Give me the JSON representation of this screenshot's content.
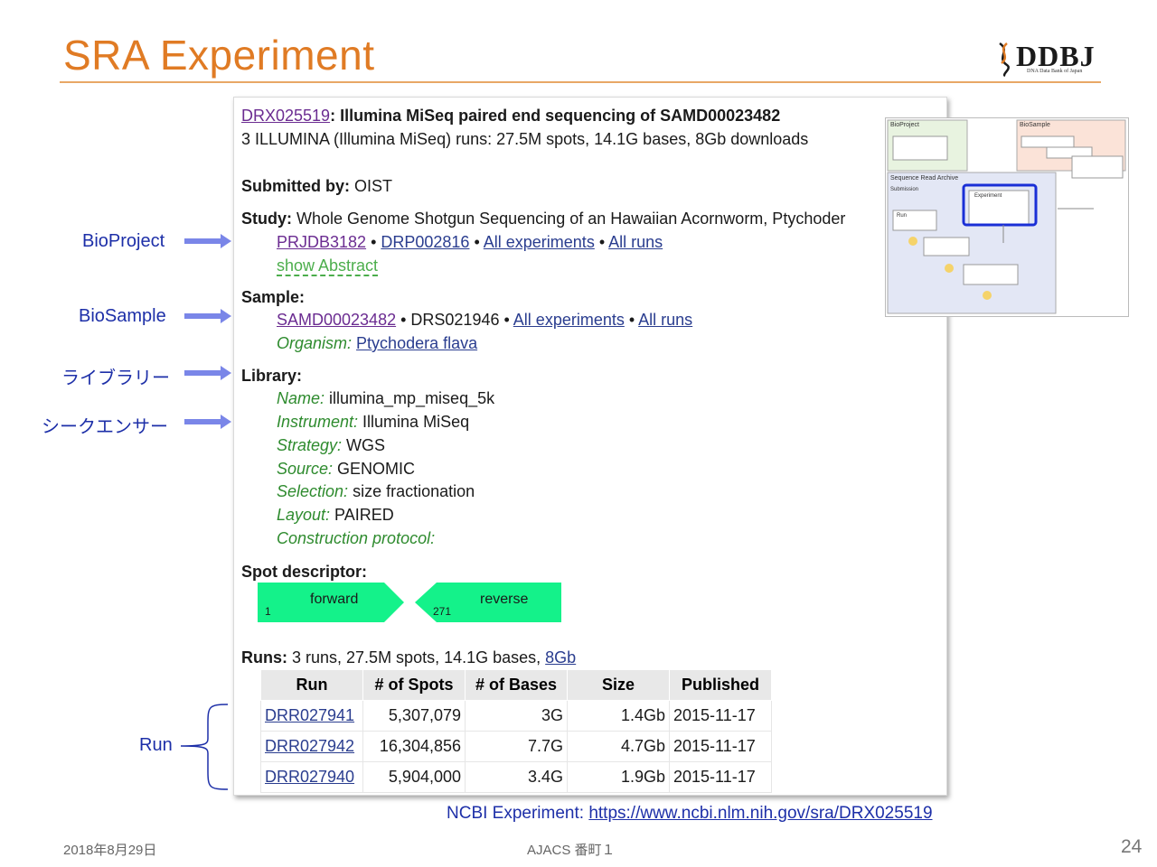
{
  "slide": {
    "title": "SRA Experiment",
    "logo_text": "DDBJ",
    "logo_sub": "DNA Data Bank of Japan",
    "footer_date": "2018年8月29日",
    "footer_center": "AJACS 番町１",
    "page_number": "24"
  },
  "colors": {
    "title": "#e07b24",
    "link": "#2a3d8f",
    "label_green": "#2e8b2e",
    "spot_fill": "#14f28a",
    "annotation_blue": "#1d2fa8"
  },
  "experiment": {
    "accession": "DRX025519",
    "title_rest": ": Illumina MiSeq paired end sequencing of SAMD00023482",
    "summary": "3 ILLUMINA (Illumina MiSeq) runs: 27.5M spots, 14.1G bases, 8Gb downloads",
    "submitted_label": "Submitted by:",
    "submitted_value": " OIST",
    "study_label": "Study:",
    "study_value": " Whole Genome Shotgun Sequencing of an Hawaiian Acornworm, Ptychoder",
    "study_links": {
      "bioproject": "PRJDB3182",
      "sep1": " • ",
      "drp": "DRP002816",
      "sep2": " • ",
      "all_experiments": "All experiments",
      "sep3": " • ",
      "all_runs": "All runs"
    },
    "show_abstract": "show Abstract",
    "sample_label": "Sample:",
    "sample_links": {
      "samd": "SAMD00023482",
      "sep1": " • ",
      "drs": "DRS021946",
      "sep2": " • ",
      "all_experiments": "All experiments",
      "sep3": " • ",
      "all_runs": "All runs"
    },
    "organism_label": "Organism:",
    "organism_value": "Ptychodera flava",
    "library_label": "Library:",
    "library_fields": [
      {
        "label": "Name:",
        "value": " illumina_mp_miseq_5k"
      },
      {
        "label": "Instrument:",
        "value": " Illumina MiSeq"
      },
      {
        "label": "Strategy:",
        "value": " WGS"
      },
      {
        "label": "Source:",
        "value": " GENOMIC"
      },
      {
        "label": "Selection:",
        "value": " size fractionation"
      },
      {
        "label": "Layout:",
        "value": " PAIRED"
      },
      {
        "label": "Construction protocol:",
        "value": ""
      }
    ],
    "spot_label": "Spot descriptor:",
    "spot_forward": "forward",
    "spot_forward_pos": "1",
    "spot_reverse": "reverse",
    "spot_reverse_pos": "271",
    "runs_label": "Runs:",
    "runs_summary": " 3 runs, 27.5M spots, 14.1G bases, ",
    "runs_download": "8Gb",
    "table_headers": [
      "Run",
      "# of Spots",
      "# of Bases",
      "Size",
      "Published"
    ],
    "table_rows": [
      {
        "run": "DRR027941",
        "spots": "5,307,079",
        "bases": "3G",
        "size": "1.4Gb",
        "published": "2015-11-17"
      },
      {
        "run": "DRR027942",
        "spots": "16,304,856",
        "bases": "7.7G",
        "size": "4.7Gb",
        "published": "2015-11-17"
      },
      {
        "run": "DRR027940",
        "spots": "5,904,000",
        "bases": "3.4G",
        "size": "1.9Gb",
        "published": "2015-11-17"
      }
    ]
  },
  "annotations": {
    "bioproject": "BioProject",
    "biosample": "BioSample",
    "library": "ライブラリー",
    "sequencer": "シークエンサー",
    "run": "Run"
  },
  "ncbi": {
    "label": "NCBI Experiment: ",
    "url": "https://www.ncbi.nlm.nih.gov/sra/DRX025519"
  },
  "mini_diagram": {
    "bioproject": "BioProject",
    "biosample": "BioSample",
    "sra": "Sequence Read Archive",
    "submission": "Submission",
    "experiment": "Experiment",
    "run": "Run"
  }
}
